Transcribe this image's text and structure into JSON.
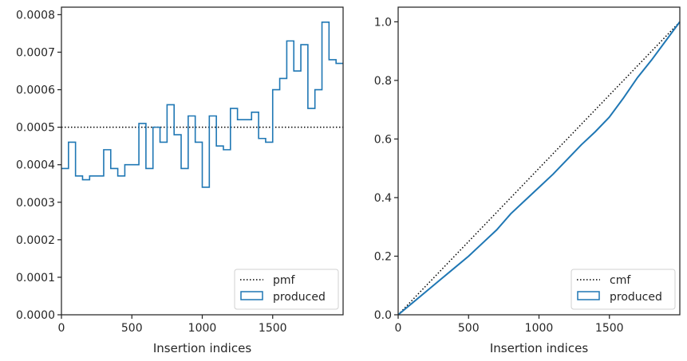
{
  "chart_data": [
    {
      "type": "histogram-step",
      "xlabel": "Insertion indices",
      "ylabel": "",
      "xlim": [
        0,
        2000
      ],
      "ylim": [
        0,
        0.00082
      ],
      "xticks": [
        0,
        500,
        1000,
        1500
      ],
      "xtick_labels": [
        "0",
        "500",
        "1000",
        "1500"
      ],
      "yticks": [
        0,
        0.0001,
        0.0002,
        0.0003,
        0.0004,
        0.0005,
        0.0006,
        0.0007,
        0.0008
      ],
      "ytick_labels": [
        "0.0000",
        "0.0001",
        "0.0002",
        "0.0003",
        "0.0004",
        "0.0005",
        "0.0006",
        "0.0007",
        "0.0008"
      ],
      "legend_position": "lower-right",
      "series": [
        {
          "name": "pmf",
          "style": "dotted",
          "color": "#000000",
          "x": [
            0,
            2000
          ],
          "y": [
            0.0005,
            0.0005
          ]
        },
        {
          "name": "produced",
          "style": "step",
          "color": "#1f77b4",
          "bin_width": 50,
          "bin_starts": [
            0,
            50,
            100,
            150,
            200,
            250,
            300,
            350,
            400,
            450,
            500,
            550,
            600,
            650,
            700,
            750,
            800,
            850,
            900,
            950,
            1000,
            1050,
            1100,
            1150,
            1200,
            1250,
            1300,
            1350,
            1400,
            1450,
            1500,
            1550,
            1600,
            1650,
            1700,
            1750,
            1800,
            1850,
            1900,
            1950
          ],
          "values": [
            0.00039,
            0.00046,
            0.00037,
            0.00036,
            0.00037,
            0.00037,
            0.00044,
            0.00039,
            0.00037,
            0.0004,
            0.0004,
            0.00051,
            0.00039,
            0.0005,
            0.00046,
            0.00056,
            0.00048,
            0.00039,
            0.00053,
            0.00046,
            0.00034,
            0.00053,
            0.00045,
            0.00044,
            0.00055,
            0.00052,
            0.00052,
            0.00054,
            0.00047,
            0.00046,
            0.0006,
            0.00063,
            0.00073,
            0.00065,
            0.00072,
            0.00055,
            0.0006,
            0.00078,
            0.00068,
            0.00067
          ]
        }
      ]
    },
    {
      "type": "line",
      "xlabel": "Insertion indices",
      "ylabel": "",
      "xlim": [
        0,
        2000
      ],
      "ylim": [
        0,
        1.05
      ],
      "xticks": [
        0,
        500,
        1000,
        1500
      ],
      "xtick_labels": [
        "0",
        "500",
        "1000",
        "1500"
      ],
      "yticks": [
        0,
        0.2,
        0.4,
        0.6,
        0.8,
        1.0
      ],
      "ytick_labels": [
        "0.0",
        "0.2",
        "0.4",
        "0.6",
        "0.8",
        "1.0"
      ],
      "legend_position": "lower-right",
      "series": [
        {
          "name": "cmf",
          "style": "dotted",
          "color": "#000000",
          "x": [
            0,
            2000
          ],
          "y": [
            0,
            1.0
          ]
        },
        {
          "name": "produced",
          "style": "solid",
          "color": "#1f77b4",
          "x": [
            0,
            100,
            200,
            300,
            400,
            500,
            600,
            700,
            800,
            900,
            1000,
            1100,
            1200,
            1300,
            1400,
            1500,
            1600,
            1700,
            1800,
            1900,
            2000
          ],
          "y": [
            0,
            0.04,
            0.08,
            0.12,
            0.16,
            0.2,
            0.245,
            0.29,
            0.345,
            0.39,
            0.435,
            0.48,
            0.53,
            0.58,
            0.625,
            0.675,
            0.74,
            0.81,
            0.87,
            0.935,
            1.0
          ]
        }
      ]
    }
  ]
}
